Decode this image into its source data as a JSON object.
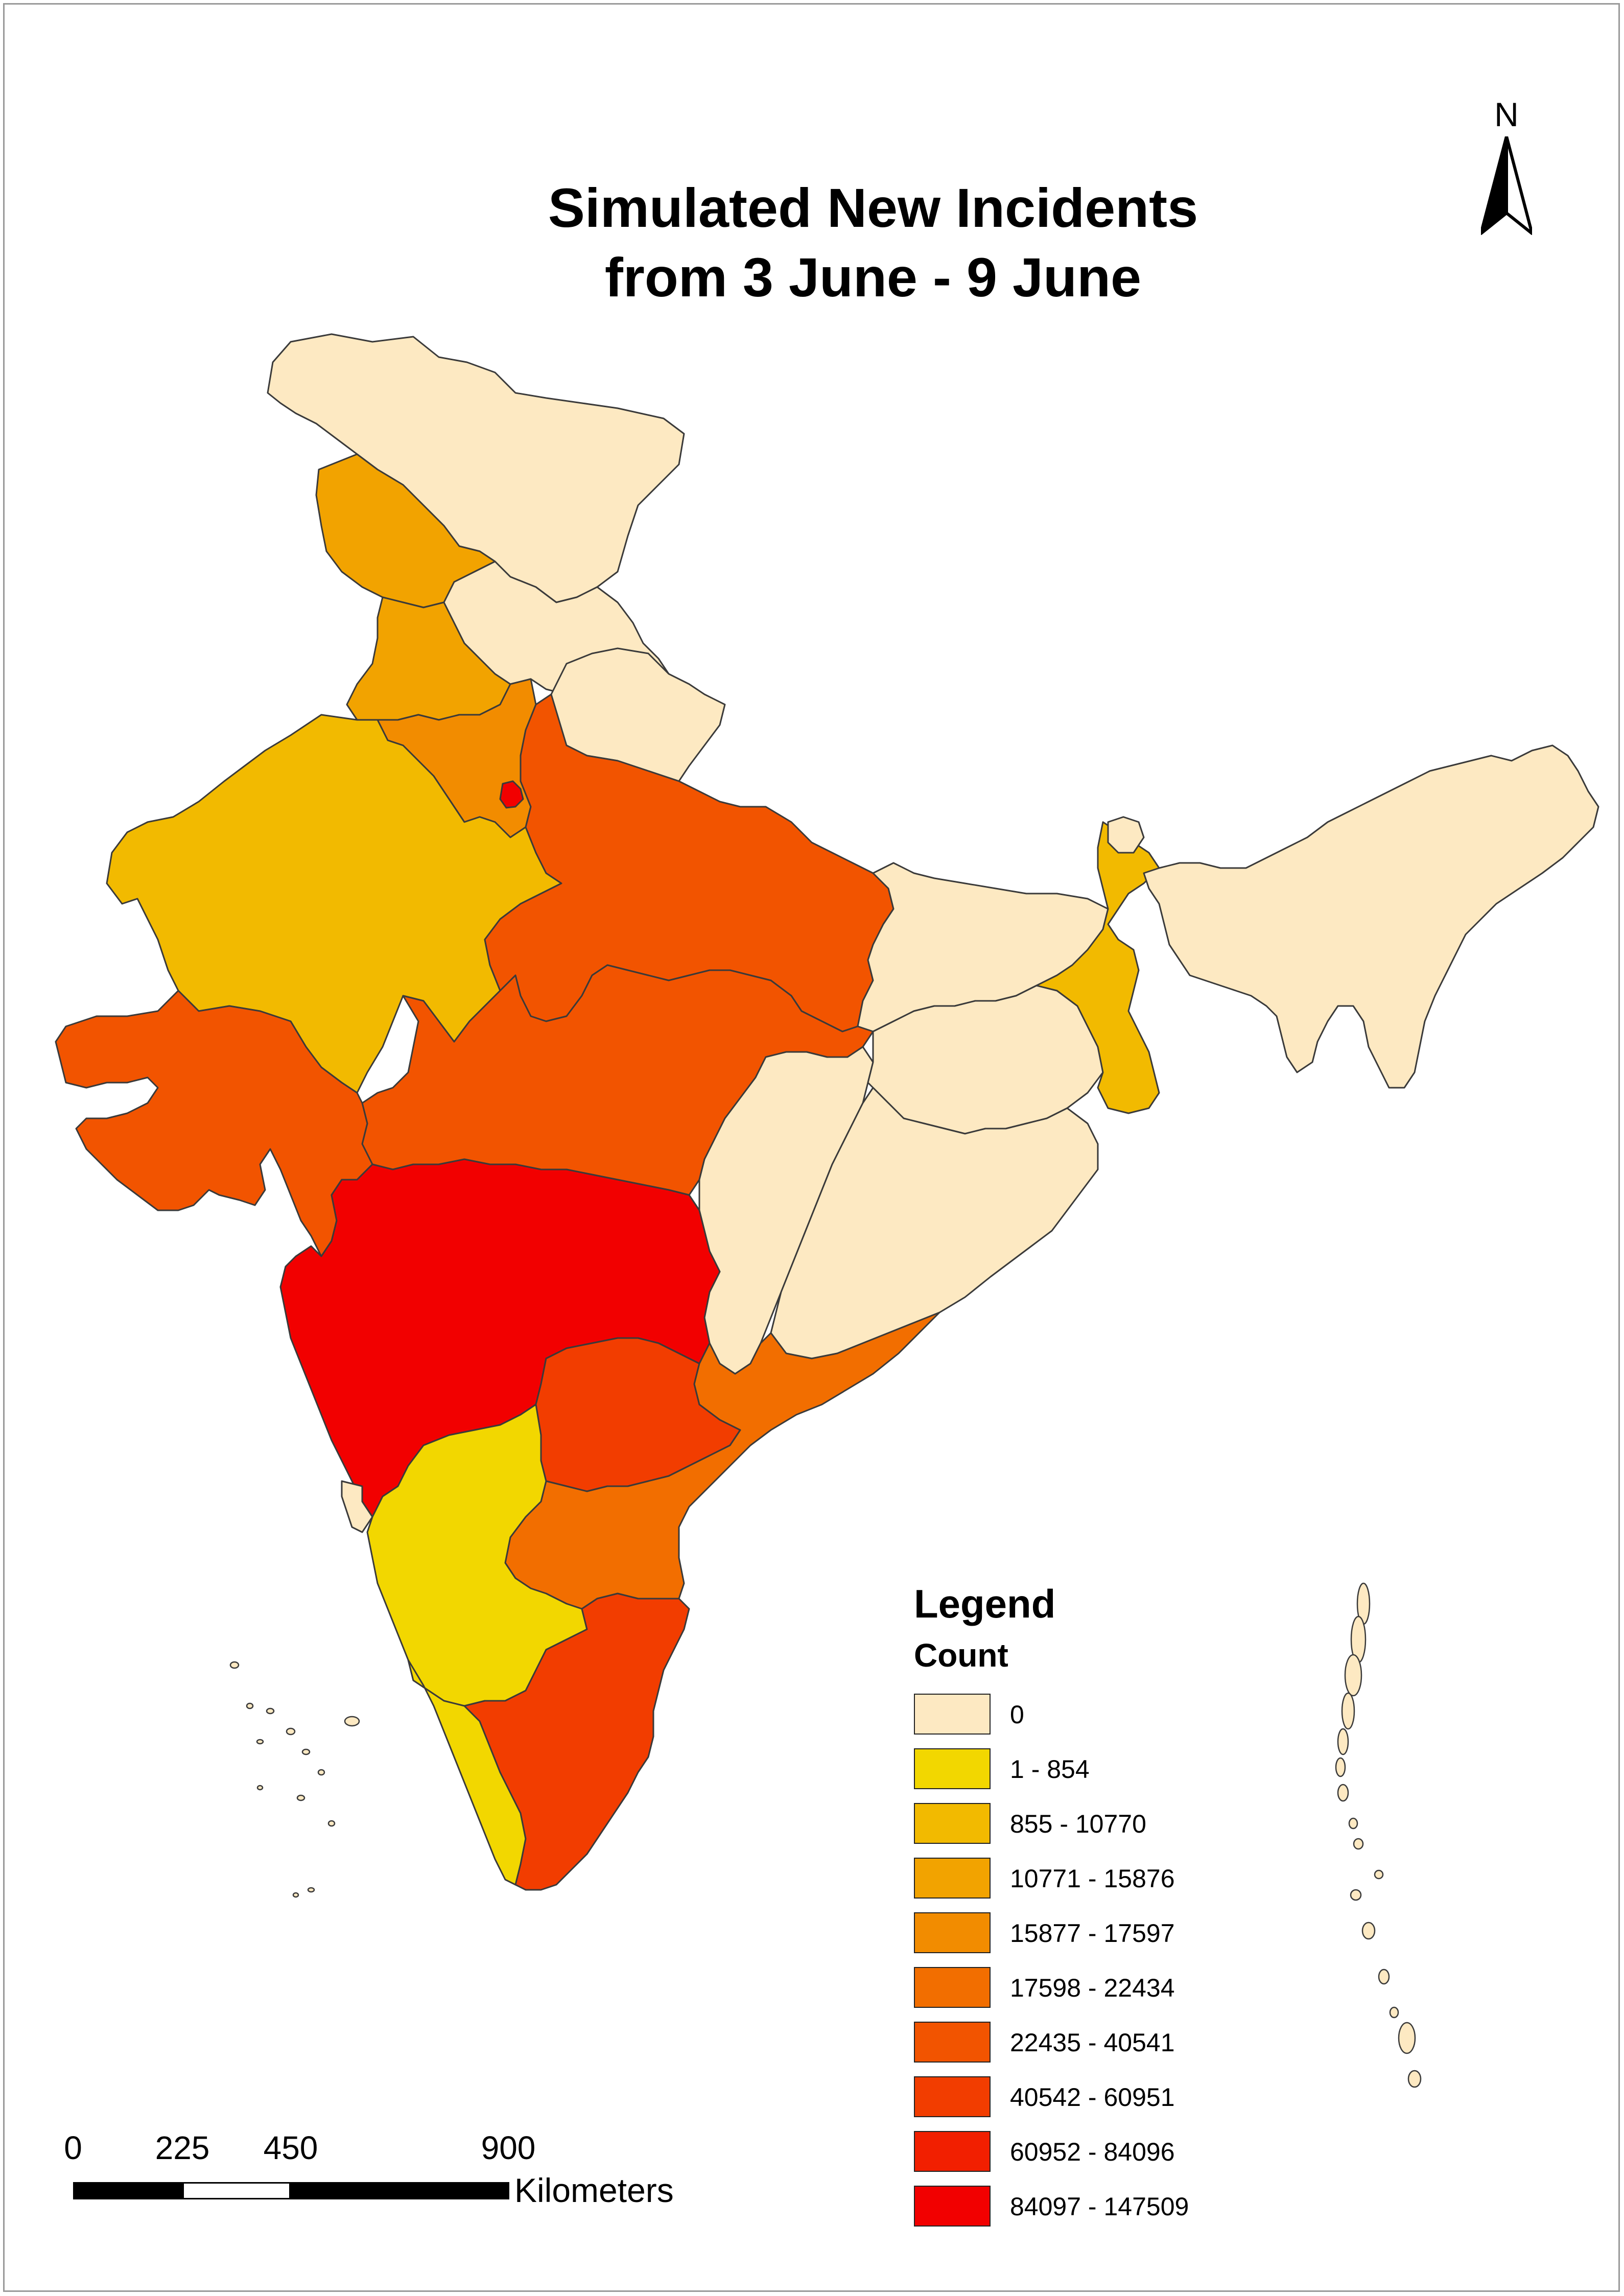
{
  "title": {
    "line1": "Simulated New Incidents",
    "line2": "from 3 June - 9 June"
  },
  "north_arrow": {
    "label": "N"
  },
  "legend": {
    "title": "Legend",
    "subtitle": "Count",
    "classes": [
      {
        "label": "0",
        "color": "#FDE9C2"
      },
      {
        "label": "1 - 854",
        "color": "#F2D700"
      },
      {
        "label": "855 - 10770",
        "color": "#F2BA00"
      },
      {
        "label": "10771 - 15876",
        "color": "#F2A300"
      },
      {
        "label": "15877 - 17597",
        "color": "#F28C00"
      },
      {
        "label": "17598 - 22434",
        "color": "#F26E00"
      },
      {
        "label": "22435 - 40541",
        "color": "#F25400"
      },
      {
        "label": "40542 - 60951",
        "color": "#F23D00"
      },
      {
        "label": "60952 - 84096",
        "color": "#F21F00"
      },
      {
        "label": "84097 - 147509",
        "color": "#F20000"
      }
    ]
  },
  "scale_bar": {
    "ticks": [
      "0",
      "225",
      "450",
      "900"
    ],
    "unit": "Kilometers"
  },
  "colors": {
    "boundary": "#3a3a3a",
    "frame": "#9a9a9a"
  }
}
